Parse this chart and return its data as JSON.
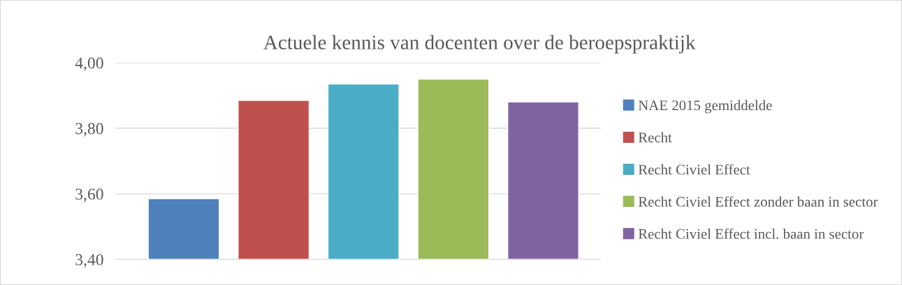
{
  "chart_data": {
    "type": "bar",
    "title": "Actuele kennis van docenten over de beroepspraktijk",
    "categories": [
      null
    ],
    "series": [
      {
        "name": "NAE 2015 gemiddelde",
        "color": "#4f81bd",
        "values": [
          3.585
        ]
      },
      {
        "name": "Recht",
        "color": "#c0504d",
        "values": [
          3.885
        ]
      },
      {
        "name": "Recht Civiel Effect",
        "color": "#4bacc6",
        "values": [
          3.935
        ]
      },
      {
        "name": "Recht Civiel Effect zonder baan in sector",
        "color": "#9bbb59",
        "values": [
          3.95
        ]
      },
      {
        "name": "Recht Civiel Effect incl. baan in sector",
        "color": "#8064a2",
        "values": [
          3.88
        ]
      }
    ],
    "ylim": [
      3.4,
      4.0
    ],
    "yticks": [
      {
        "value": 3.4,
        "label": "3,40"
      },
      {
        "value": 3.6,
        "label": "3,60"
      },
      {
        "value": 3.8,
        "label": "3,80"
      },
      {
        "value": 4.0,
        "label": "4,00"
      }
    ],
    "grid": "y",
    "legend": "right",
    "tick_labels": "y"
  }
}
